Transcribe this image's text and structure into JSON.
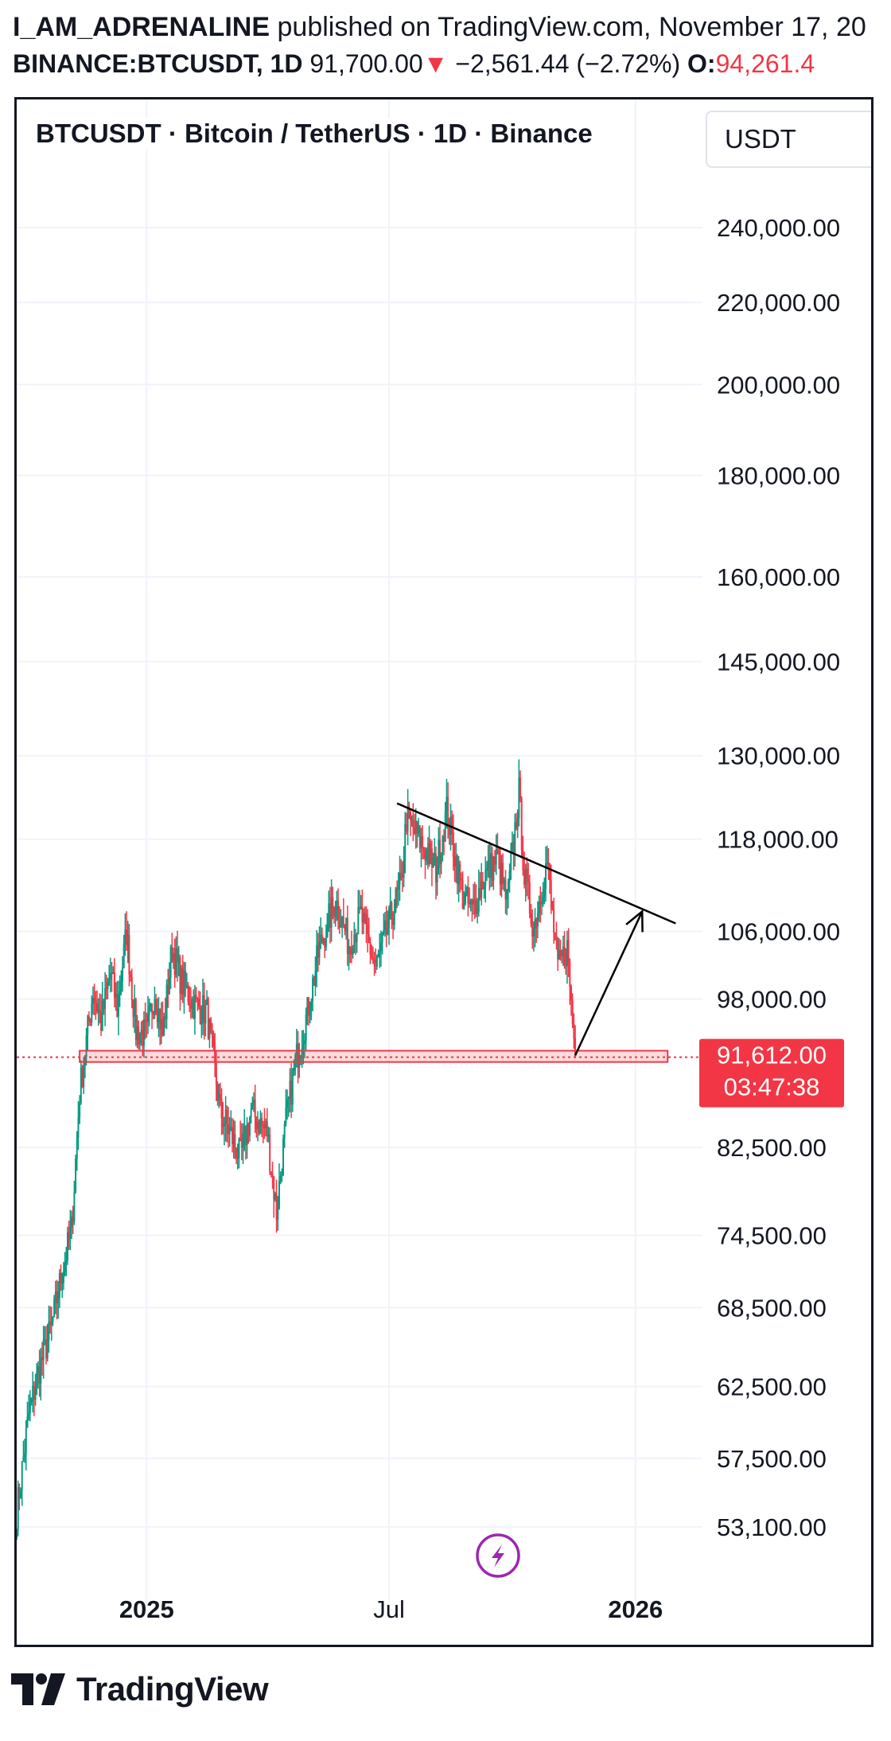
{
  "header": {
    "author": "I_AM_ADRENALINE",
    "published_text": "published on TradingView.com, November 17, 20",
    "symbol": "BINANCE:BTCUSDT, 1D",
    "last": "91,700.00",
    "down_arrow": "▼",
    "change": "−2,561.44 (−2.72%)",
    "open_label": "O:",
    "open_value": "94,261.4"
  },
  "chart": {
    "title": "BTCUSDT · Bitcoin / TetherUS · 1D · Binance",
    "currency": "USDT",
    "current_price_label": "91,612.00",
    "countdown": "03:47:38",
    "badge_icon": "lightning-icon"
  },
  "colors": {
    "up": "#089981",
    "down": "#f23645",
    "support_zone": "#f23645",
    "trendline": "#000000"
  },
  "chart_data": {
    "type": "candlestick",
    "symbol": "BTCUSDT",
    "interval": "1D",
    "y_scale": "log",
    "ylim": [
      48000,
      270000
    ],
    "y_ticks": [
      240000,
      220000,
      200000,
      180000,
      160000,
      145000,
      130000,
      118000,
      106000,
      98000,
      82500,
      74500,
      68500,
      62500,
      57500,
      53100
    ],
    "y_tick_labels": [
      "240,000.00",
      "220,000.00",
      "200,000.00",
      "180,000.00",
      "160,000.00",
      "145,000.00",
      "130,000.00",
      "118,000.00",
      "106,000.00",
      "98,000.00",
      "82,500.00",
      "74,500.00",
      "68,500.00",
      "62,500.00",
      "57,500.00",
      "53,100.00"
    ],
    "x_ticks": [
      "2025",
      "Jul",
      "2026"
    ],
    "x_tick_dates": [
      "2025-01-01",
      "2025-07-01",
      "2026-01-01"
    ],
    "xlim": [
      "2024-09-26",
      "2026-02-20"
    ],
    "price_path": [
      [
        "2024-09-26",
        54000
      ],
      [
        "2024-10-05",
        60500
      ],
      [
        "2024-10-12",
        63500
      ],
      [
        "2024-10-22",
        67000
      ],
      [
        "2024-10-30",
        71500
      ],
      [
        "2024-11-06",
        75000
      ],
      [
        "2024-11-12",
        88000
      ],
      [
        "2024-11-22",
        99000
      ],
      [
        "2024-11-28",
        95500
      ],
      [
        "2024-12-05",
        101000
      ],
      [
        "2024-12-10",
        97000
      ],
      [
        "2024-12-17",
        106000
      ],
      [
        "2024-12-24",
        94500
      ],
      [
        "2025-01-01",
        94000
      ],
      [
        "2025-01-07",
        99000
      ],
      [
        "2025-01-13",
        94000
      ],
      [
        "2025-01-20",
        104000
      ],
      [
        "2025-01-27",
        100000
      ],
      [
        "2025-02-05",
        97500
      ],
      [
        "2025-02-15",
        96500
      ],
      [
        "2025-02-25",
        86000
      ],
      [
        "2025-03-04",
        84000
      ],
      [
        "2025-03-12",
        81500
      ],
      [
        "2025-03-20",
        86000
      ],
      [
        "2025-04-01",
        84000
      ],
      [
        "2025-04-08",
        76500
      ],
      [
        "2025-04-15",
        85000
      ],
      [
        "2025-04-22",
        91000
      ],
      [
        "2025-05-01",
        96500
      ],
      [
        "2025-05-10",
        104000
      ],
      [
        "2025-05-22",
        110000
      ],
      [
        "2025-06-01",
        104500
      ],
      [
        "2025-06-10",
        108000
      ],
      [
        "2025-06-21",
        101500
      ],
      [
        "2025-07-01",
        107000
      ],
      [
        "2025-07-10",
        112000
      ],
      [
        "2025-07-14",
        121000
      ],
      [
        "2025-07-25",
        117500
      ],
      [
        "2025-08-05",
        114000
      ],
      [
        "2025-08-13",
        122000
      ],
      [
        "2025-08-25",
        110500
      ],
      [
        "2025-09-01",
        108500
      ],
      [
        "2025-09-10",
        113000
      ],
      [
        "2025-09-20",
        115500
      ],
      [
        "2025-09-27",
        109500
      ],
      [
        "2025-10-06",
        124500
      ],
      [
        "2025-10-10",
        113000
      ],
      [
        "2025-10-17",
        106500
      ],
      [
        "2025-10-27",
        115000
      ],
      [
        "2025-11-04",
        101500
      ],
      [
        "2025-11-11",
        104000
      ],
      [
        "2025-11-17",
        91700
      ]
    ],
    "support_zone": {
      "start": "2024-11-12",
      "end": "2026-01-25",
      "low": 91100,
      "high": 92300
    },
    "current_price": 91612,
    "trendline": {
      "points": [
        [
          "2025-07-07",
          123000
        ],
        [
          "2026-01-31",
          107000
        ]
      ]
    },
    "projection_arrow": {
      "points": [
        [
          "2025-11-17",
          91800
        ],
        [
          "2026-01-06",
          108500
        ]
      ]
    }
  }
}
